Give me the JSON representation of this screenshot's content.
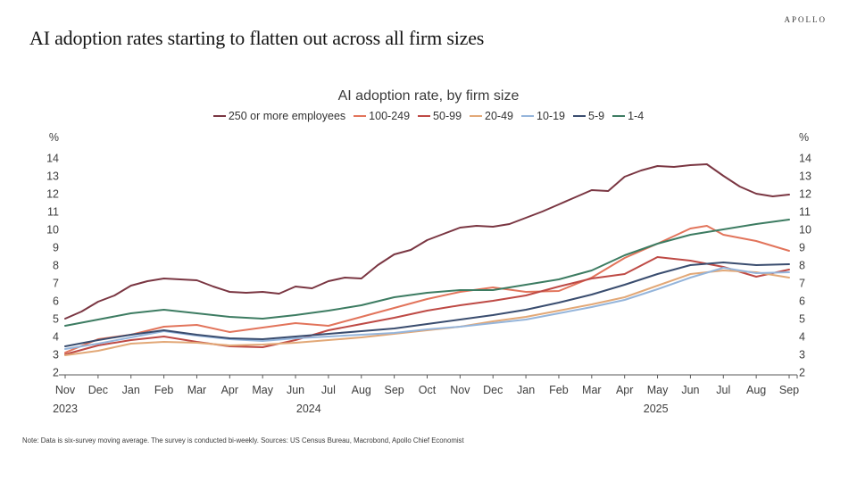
{
  "brand": {
    "logo": "APOLLO"
  },
  "page_title": "AI adoption rates starting to flatten out across all firm sizes",
  "note": "Note: Data is six-survey moving average. The survey is conducted bi-weekly. Sources: US Census Bureau, Macrobond, Apollo Chief Economist",
  "chart_data": {
    "type": "line",
    "title": "AI adoption rate, by firm size",
    "ylabel_left": "%",
    "ylabel_right": "%",
    "ylim": [
      2,
      14
    ],
    "yticks": [
      2,
      3,
      4,
      5,
      6,
      7,
      8,
      9,
      10,
      11,
      12,
      13,
      14
    ],
    "grid": false,
    "legend_position": "top",
    "axis_color": "#595959",
    "text_color": "#3d3d3d",
    "x_note": "x values are month indices: 0 = Nov 2023, 22 = Sep 2025",
    "xtick_labels": [
      "Nov",
      "Dec",
      "Jan",
      "Feb",
      "Mar",
      "Apr",
      "May",
      "Jun",
      "Jul",
      "Aug",
      "Sep",
      "Oct",
      "Nov",
      "Dec",
      "Jan",
      "Feb",
      "Mar",
      "Apr",
      "May",
      "Jun",
      "Jul",
      "Aug",
      "Sep"
    ],
    "year_labels": [
      {
        "text": "2023",
        "month_index": 0
      },
      {
        "text": "2024",
        "month_index": 7.4
      },
      {
        "text": "2025",
        "month_index": 17.95
      }
    ],
    "series": [
      {
        "name": "250 or more employees",
        "color": "#7A3642",
        "x": [
          0,
          0.5,
          1,
          1.5,
          2,
          2.5,
          3,
          3.5,
          4,
          4.5,
          5,
          5.5,
          6,
          6.5,
          7,
          7.5,
          8,
          8.5,
          9,
          9.5,
          10,
          10.5,
          11,
          11.5,
          12,
          12.5,
          13,
          13.5,
          14,
          14.5,
          15,
          15.5,
          16,
          16.5,
          17,
          17.5,
          18,
          18.5,
          19,
          19.5,
          20,
          20.5,
          21,
          21.5,
          22
        ],
        "values": [
          5.0,
          5.4,
          5.95,
          6.3,
          6.85,
          7.1,
          7.25,
          7.2,
          7.15,
          6.8,
          6.5,
          6.45,
          6.5,
          6.4,
          6.8,
          6.7,
          7.1,
          7.3,
          7.25,
          8.0,
          8.6,
          8.85,
          9.4,
          9.75,
          10.1,
          10.2,
          10.15,
          10.3,
          10.65,
          11.0,
          11.4,
          11.8,
          12.2,
          12.15,
          12.95,
          13.3,
          13.55,
          13.5,
          13.6,
          13.65,
          13.0,
          12.4,
          12.0,
          11.85,
          11.95
        ]
      },
      {
        "name": "100-249",
        "color": "#E2745B",
        "x": [
          0,
          1,
          2,
          3,
          4,
          5,
          6,
          7,
          8,
          9,
          10,
          11,
          12,
          13,
          14,
          15,
          16,
          17,
          18,
          19,
          19.5,
          20,
          21,
          22
        ],
        "values": [
          3.1,
          3.85,
          4.1,
          4.55,
          4.65,
          4.25,
          4.5,
          4.75,
          4.6,
          5.1,
          5.6,
          6.1,
          6.5,
          6.75,
          6.5,
          6.55,
          7.3,
          8.4,
          9.2,
          10.05,
          10.2,
          9.7,
          9.35,
          8.8
        ]
      },
      {
        "name": "50-99",
        "color": "#BE4A45",
        "values": [
          3.0,
          3.5,
          3.8,
          4.0,
          3.7,
          3.45,
          3.4,
          3.8,
          4.35,
          4.7,
          5.05,
          5.45,
          5.75,
          6.0,
          6.3,
          6.8,
          7.25,
          7.5,
          8.45,
          8.25,
          7.9,
          7.35,
          7.75
        ]
      },
      {
        "name": "20-49",
        "color": "#E2A877",
        "values": [
          2.95,
          3.2,
          3.6,
          3.7,
          3.65,
          3.5,
          3.55,
          3.65,
          3.8,
          3.95,
          4.15,
          4.35,
          4.55,
          4.85,
          5.1,
          5.45,
          5.8,
          6.2,
          6.85,
          7.5,
          7.7,
          7.6,
          7.3
        ]
      },
      {
        "name": "10-19",
        "color": "#95B5DB",
        "values": [
          3.3,
          3.6,
          3.95,
          4.3,
          4.05,
          3.85,
          3.75,
          3.9,
          4.0,
          4.1,
          4.2,
          4.4,
          4.55,
          4.75,
          4.95,
          5.3,
          5.65,
          6.05,
          6.65,
          7.3,
          7.85,
          7.55,
          7.6
        ]
      },
      {
        "name": "5-9",
        "color": "#3A4D6F",
        "values": [
          3.45,
          3.8,
          4.1,
          4.35,
          4.1,
          3.9,
          3.85,
          4.0,
          4.15,
          4.3,
          4.45,
          4.7,
          4.95,
          5.2,
          5.5,
          5.9,
          6.35,
          6.9,
          7.5,
          8.0,
          8.15,
          8.0,
          8.05
        ]
      },
      {
        "name": "1-4",
        "color": "#3D7C62",
        "values": [
          4.6,
          4.95,
          5.3,
          5.5,
          5.3,
          5.1,
          5.0,
          5.2,
          5.45,
          5.75,
          6.2,
          6.45,
          6.6,
          6.6,
          6.9,
          7.2,
          7.7,
          8.55,
          9.2,
          9.7,
          10.0,
          10.3,
          10.55
        ]
      }
    ]
  }
}
